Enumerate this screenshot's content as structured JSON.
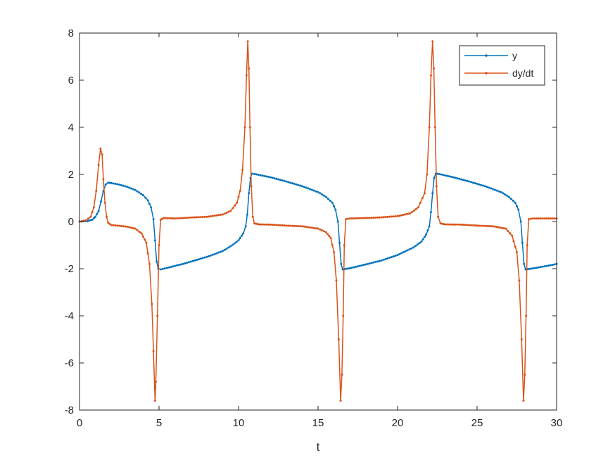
{
  "chart_data": {
    "type": "line",
    "title": "",
    "xlabel": "t",
    "ylabel": "",
    "xlim": [
      0,
      30
    ],
    "ylim": [
      -8,
      8
    ],
    "xticks": [
      0,
      5,
      10,
      15,
      20,
      25,
      30
    ],
    "yticks": [
      -8,
      -6,
      -4,
      -2,
      0,
      2,
      4,
      6,
      8
    ],
    "grid": false,
    "box": true,
    "legend_position": "top-right",
    "marker": "dot",
    "series": [
      {
        "name": "y",
        "color": "#0072BD",
        "points": [
          [
            0.0,
            0.0
          ],
          [
            0.5,
            0.02
          ],
          [
            0.8,
            0.08
          ],
          [
            1.0,
            0.2
          ],
          [
            1.2,
            0.45
          ],
          [
            1.35,
            0.85
          ],
          [
            1.5,
            1.3
          ],
          [
            1.65,
            1.58
          ],
          [
            1.8,
            1.65
          ],
          [
            2.0,
            1.63
          ],
          [
            2.5,
            1.57
          ],
          [
            3.0,
            1.47
          ],
          [
            3.5,
            1.34
          ],
          [
            4.0,
            1.12
          ],
          [
            4.3,
            0.9
          ],
          [
            4.5,
            0.6
          ],
          [
            4.65,
            0.1
          ],
          [
            4.75,
            -0.8
          ],
          [
            4.85,
            -1.7
          ],
          [
            4.95,
            -2.0
          ],
          [
            5.1,
            -2.03
          ],
          [
            5.5,
            -1.97
          ],
          [
            6.0,
            -1.88
          ],
          [
            6.5,
            -1.8
          ],
          [
            7.0,
            -1.7
          ],
          [
            7.5,
            -1.6
          ],
          [
            8.0,
            -1.5
          ],
          [
            8.5,
            -1.38
          ],
          [
            9.0,
            -1.25
          ],
          [
            9.5,
            -1.05
          ],
          [
            10.0,
            -0.8
          ],
          [
            10.3,
            -0.5
          ],
          [
            10.45,
            -0.2
          ],
          [
            10.55,
            0.3
          ],
          [
            10.65,
            1.2
          ],
          [
            10.75,
            1.85
          ],
          [
            10.85,
            2.03
          ],
          [
            11.0,
            2.02
          ],
          [
            12.0,
            1.88
          ],
          [
            13.0,
            1.7
          ],
          [
            14.0,
            1.5
          ],
          [
            15.0,
            1.25
          ],
          [
            15.5,
            1.05
          ],
          [
            15.9,
            0.8
          ],
          [
            16.1,
            0.5
          ],
          [
            16.25,
            0.0
          ],
          [
            16.35,
            -0.9
          ],
          [
            16.45,
            -1.8
          ],
          [
            16.55,
            -2.03
          ],
          [
            17.0,
            -1.98
          ],
          [
            18.0,
            -1.82
          ],
          [
            19.0,
            -1.65
          ],
          [
            20.0,
            -1.42
          ],
          [
            21.0,
            -1.1
          ],
          [
            21.5,
            -0.85
          ],
          [
            21.8,
            -0.55
          ],
          [
            22.0,
            -0.2
          ],
          [
            22.1,
            0.4
          ],
          [
            22.2,
            1.2
          ],
          [
            22.3,
            1.85
          ],
          [
            22.4,
            2.03
          ],
          [
            22.6,
            2.02
          ],
          [
            23.5,
            1.88
          ],
          [
            24.5,
            1.7
          ],
          [
            25.5,
            1.5
          ],
          [
            26.5,
            1.25
          ],
          [
            27.0,
            1.05
          ],
          [
            27.4,
            0.8
          ],
          [
            27.6,
            0.5
          ],
          [
            27.75,
            0.0
          ],
          [
            27.85,
            -0.9
          ],
          [
            27.95,
            -1.8
          ],
          [
            28.05,
            -2.03
          ],
          [
            28.5,
            -1.99
          ],
          [
            29.0,
            -1.93
          ],
          [
            29.5,
            -1.87
          ],
          [
            30.0,
            -1.8
          ]
        ]
      },
      {
        "name": "dy/dt",
        "color": "#D95319",
        "points": [
          [
            0.0,
            0.0
          ],
          [
            0.4,
            0.05
          ],
          [
            0.7,
            0.2
          ],
          [
            0.9,
            0.6
          ],
          [
            1.05,
            1.3
          ],
          [
            1.2,
            2.4
          ],
          [
            1.32,
            3.1
          ],
          [
            1.42,
            2.85
          ],
          [
            1.5,
            1.8
          ],
          [
            1.6,
            0.8
          ],
          [
            1.7,
            0.2
          ],
          [
            1.8,
            -0.05
          ],
          [
            2.0,
            -0.15
          ],
          [
            2.5,
            -0.18
          ],
          [
            3.0,
            -0.22
          ],
          [
            3.5,
            -0.3
          ],
          [
            3.9,
            -0.5
          ],
          [
            4.2,
            -0.9
          ],
          [
            4.4,
            -1.8
          ],
          [
            4.55,
            -3.5
          ],
          [
            4.65,
            -5.5
          ],
          [
            4.75,
            -7.6
          ],
          [
            4.8,
            -6.8
          ],
          [
            4.9,
            -4.0
          ],
          [
            5.0,
            -1.0
          ],
          [
            5.1,
            0.08
          ],
          [
            5.3,
            0.15
          ],
          [
            6.0,
            0.13
          ],
          [
            7.0,
            0.17
          ],
          [
            8.0,
            0.2
          ],
          [
            9.0,
            0.3
          ],
          [
            9.5,
            0.45
          ],
          [
            9.9,
            0.8
          ],
          [
            10.1,
            1.3
          ],
          [
            10.25,
            2.2
          ],
          [
            10.4,
            4.0
          ],
          [
            10.5,
            6.2
          ],
          [
            10.58,
            7.65
          ],
          [
            10.65,
            6.5
          ],
          [
            10.72,
            4.0
          ],
          [
            10.8,
            1.5
          ],
          [
            10.9,
            0.2
          ],
          [
            11.0,
            -0.08
          ],
          [
            11.3,
            -0.12
          ],
          [
            12.0,
            -0.13
          ],
          [
            13.0,
            -0.17
          ],
          [
            14.0,
            -0.2
          ],
          [
            15.0,
            -0.3
          ],
          [
            15.5,
            -0.45
          ],
          [
            15.8,
            -0.7
          ],
          [
            16.0,
            -1.3
          ],
          [
            16.15,
            -2.5
          ],
          [
            16.3,
            -5.0
          ],
          [
            16.42,
            -7.6
          ],
          [
            16.5,
            -6.5
          ],
          [
            16.58,
            -4.0
          ],
          [
            16.65,
            -1.0
          ],
          [
            16.75,
            0.1
          ],
          [
            17.0,
            0.13
          ],
          [
            18.0,
            0.15
          ],
          [
            19.0,
            0.18
          ],
          [
            20.0,
            0.23
          ],
          [
            20.8,
            0.35
          ],
          [
            21.3,
            0.6
          ],
          [
            21.7,
            1.2
          ],
          [
            21.85,
            2.0
          ],
          [
            22.0,
            4.0
          ],
          [
            22.1,
            6.2
          ],
          [
            22.2,
            7.65
          ],
          [
            22.28,
            6.5
          ],
          [
            22.36,
            4.0
          ],
          [
            22.45,
            1.5
          ],
          [
            22.55,
            0.2
          ],
          [
            22.7,
            -0.08
          ],
          [
            23.0,
            -0.12
          ],
          [
            24.0,
            -0.13
          ],
          [
            25.0,
            -0.17
          ],
          [
            26.0,
            -0.2
          ],
          [
            26.8,
            -0.3
          ],
          [
            27.2,
            -0.6
          ],
          [
            27.5,
            -1.3
          ],
          [
            27.65,
            -2.5
          ],
          [
            27.8,
            -5.0
          ],
          [
            27.92,
            -7.6
          ],
          [
            28.0,
            -6.5
          ],
          [
            28.08,
            -4.0
          ],
          [
            28.15,
            -1.0
          ],
          [
            28.25,
            0.1
          ],
          [
            28.5,
            0.13
          ],
          [
            29.0,
            0.13
          ],
          [
            30.0,
            0.13
          ]
        ]
      }
    ]
  }
}
